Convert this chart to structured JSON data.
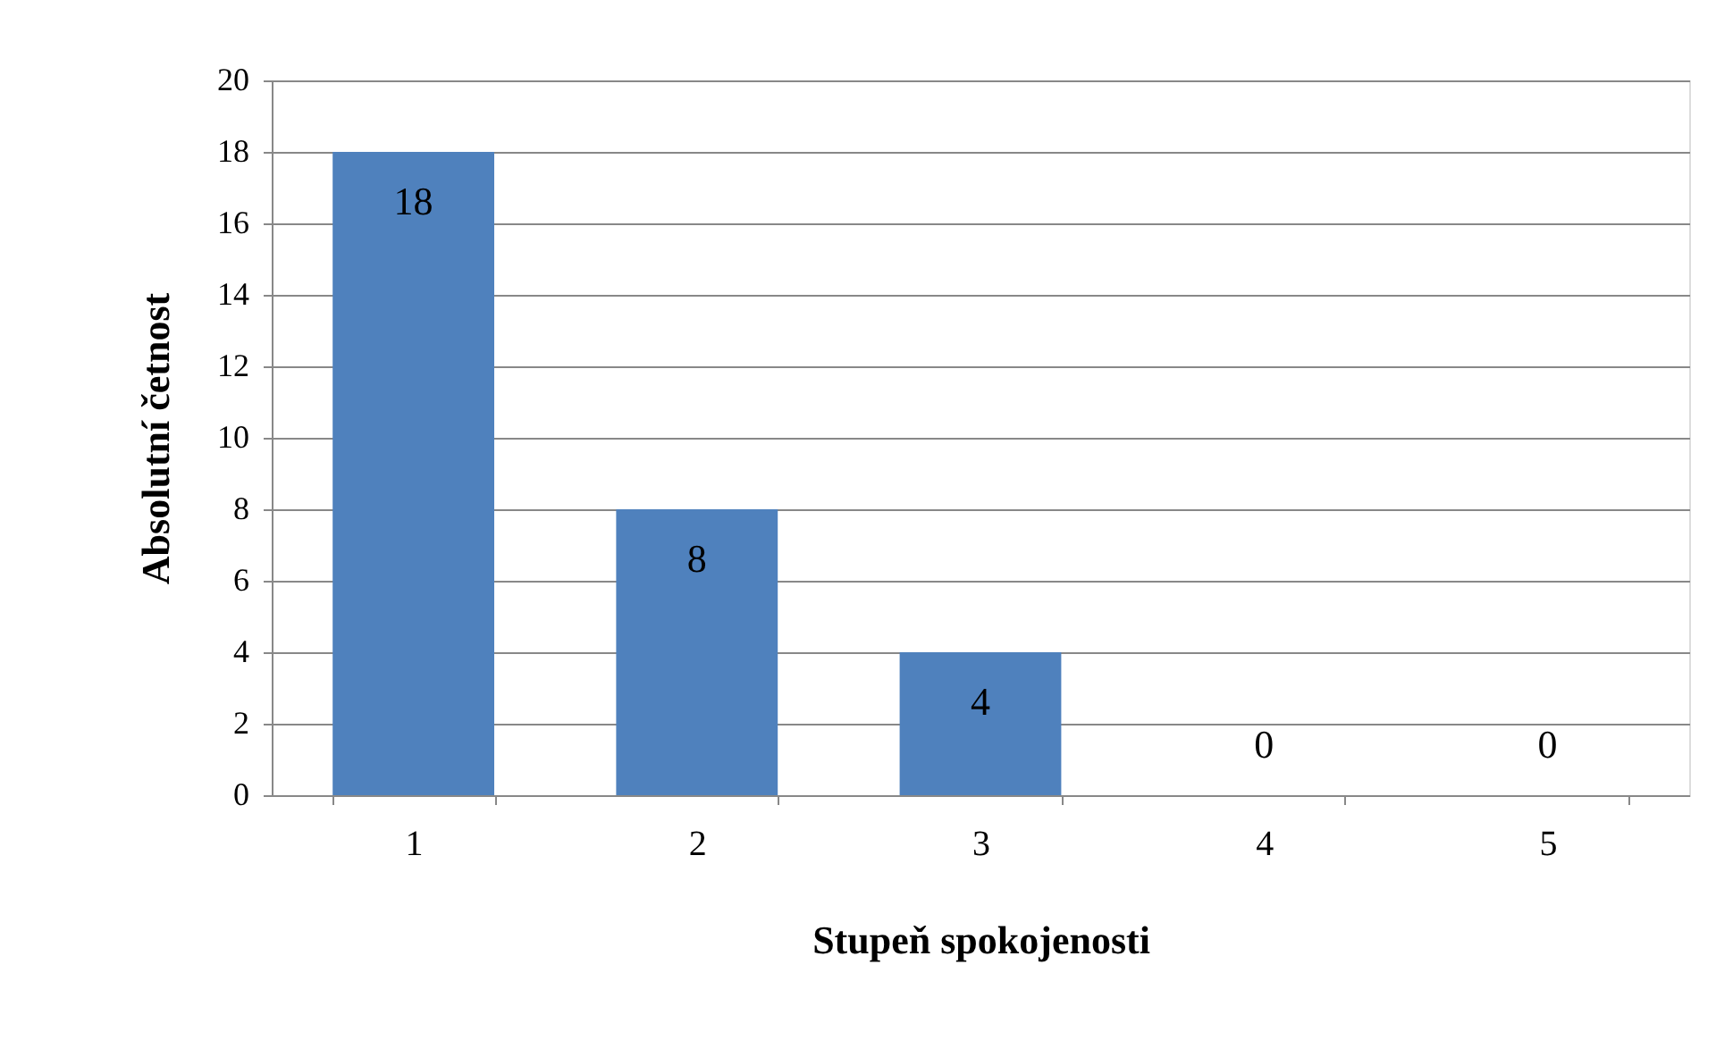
{
  "chart_data": {
    "type": "bar",
    "xlabel": "Stupeň spokojenosti",
    "ylabel": "Absolutní četnost",
    "categories": [
      "1",
      "2",
      "3",
      "4",
      "5"
    ],
    "values": [
      18,
      8,
      4,
      0,
      0
    ],
    "color": "#4f81bd",
    "ylim": [
      0,
      20
    ],
    "yticks": [
      0,
      2,
      4,
      6,
      8,
      10,
      12,
      14,
      16,
      18,
      20
    ],
    "grid": "y",
    "data_labels": true
  }
}
